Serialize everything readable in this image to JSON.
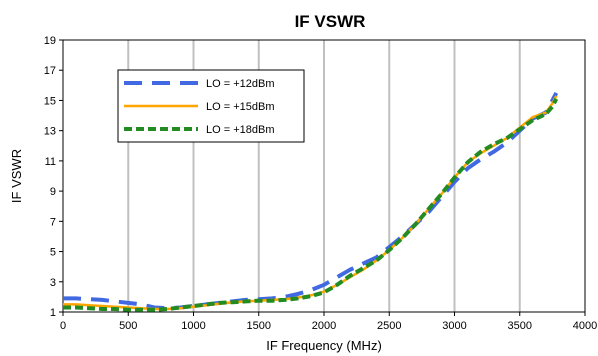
{
  "chart_data": {
    "type": "line",
    "title": "IF VSWR",
    "xlabel": "IF Frequency (MHz)",
    "ylabel": "IF VSWR",
    "xlim": [
      0,
      4000
    ],
    "ylim": [
      1,
      19
    ],
    "xticks": [
      0,
      500,
      1000,
      1500,
      2000,
      2500,
      3000,
      3500,
      4000
    ],
    "yticks": [
      1,
      3,
      5,
      7,
      9,
      11,
      13,
      15,
      17,
      19
    ],
    "grid": "vertical",
    "legend_position": "top-left",
    "series": [
      {
        "name": "LO = +12dBm",
        "color": "#4169E1",
        "dash": "long-dash",
        "x": [
          0,
          100,
          200,
          300,
          400,
          500,
          600,
          700,
          800,
          900,
          1000,
          1100,
          1200,
          1300,
          1400,
          1500,
          1600,
          1700,
          1800,
          1900,
          2000,
          2100,
          2200,
          2300,
          2400,
          2500,
          2600,
          2700,
          2800,
          2900,
          3000,
          3100,
          3200,
          3300,
          3400,
          3500,
          3600,
          3700,
          3750,
          3780
        ],
        "y": [
          1.9,
          1.9,
          1.85,
          1.8,
          1.7,
          1.6,
          1.5,
          1.3,
          1.25,
          1.3,
          1.4,
          1.5,
          1.6,
          1.7,
          1.8,
          1.85,
          1.9,
          2.0,
          2.2,
          2.45,
          2.8,
          3.3,
          3.8,
          4.2,
          4.6,
          5.3,
          6.0,
          6.8,
          7.6,
          8.6,
          9.6,
          10.5,
          11.1,
          11.6,
          12.2,
          13.0,
          13.8,
          14.2,
          15.0,
          15.5
        ]
      },
      {
        "name": "LO = +15dBm",
        "color": "#FFA500",
        "dash": "solid",
        "x": [
          0,
          100,
          200,
          300,
          400,
          500,
          600,
          700,
          800,
          900,
          1000,
          1100,
          1200,
          1300,
          1400,
          1500,
          1600,
          1700,
          1800,
          1900,
          2000,
          2100,
          2200,
          2300,
          2400,
          2500,
          2600,
          2700,
          2800,
          2900,
          3000,
          3100,
          3200,
          3300,
          3400,
          3500,
          3600,
          3700,
          3750,
          3780
        ],
        "y": [
          1.5,
          1.5,
          1.45,
          1.4,
          1.35,
          1.3,
          1.25,
          1.2,
          1.2,
          1.25,
          1.35,
          1.45,
          1.55,
          1.65,
          1.7,
          1.75,
          1.8,
          1.85,
          1.95,
          2.1,
          2.35,
          2.8,
          3.3,
          3.8,
          4.4,
          5.1,
          5.9,
          6.8,
          7.8,
          8.8,
          9.9,
          10.9,
          11.5,
          12.0,
          12.5,
          13.2,
          13.9,
          14.2,
          14.8,
          15.3
        ]
      },
      {
        "name": "LO = +18dBm",
        "color": "#228B22",
        "dash": "short-dash",
        "x": [
          0,
          100,
          200,
          300,
          400,
          500,
          600,
          700,
          800,
          900,
          1000,
          1100,
          1200,
          1300,
          1400,
          1500,
          1600,
          1700,
          1800,
          1900,
          2000,
          2100,
          2200,
          2300,
          2400,
          2500,
          2600,
          2700,
          2800,
          2900,
          3000,
          3100,
          3200,
          3300,
          3400,
          3500,
          3600,
          3700,
          3750,
          3780
        ],
        "y": [
          1.3,
          1.3,
          1.25,
          1.2,
          1.2,
          1.15,
          1.15,
          1.15,
          1.2,
          1.3,
          1.4,
          1.5,
          1.6,
          1.65,
          1.7,
          1.75,
          1.75,
          1.8,
          1.9,
          2.05,
          2.3,
          2.8,
          3.4,
          3.9,
          4.4,
          5.1,
          5.9,
          6.8,
          7.8,
          8.8,
          9.9,
          10.9,
          11.6,
          12.1,
          12.5,
          13.1,
          13.7,
          14.1,
          14.6,
          15.1
        ]
      }
    ]
  }
}
